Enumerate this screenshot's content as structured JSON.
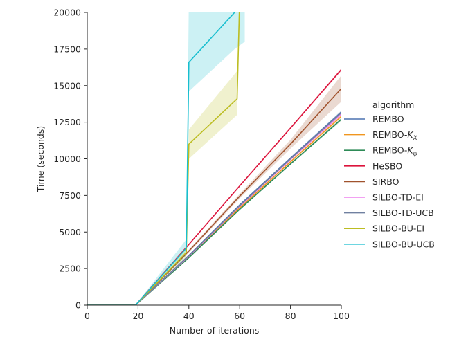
{
  "chart_data": {
    "type": "line",
    "title": "",
    "xlabel": "Number of iterations",
    "ylabel": "Time (seconds)",
    "xlim": [
      0,
      100
    ],
    "ylim": [
      0,
      20000
    ],
    "xticks": [
      0,
      20,
      40,
      60,
      80,
      100
    ],
    "yticks": [
      0,
      2500,
      5000,
      7500,
      10000,
      12500,
      15000,
      17500,
      20000
    ],
    "grid": false,
    "legend": {
      "title": "algorithm",
      "placement": "right"
    },
    "series": [
      {
        "name": "REMBO",
        "color": "#4c72b0",
        "points": [
          [
            0,
            0
          ],
          [
            19,
            0
          ],
          [
            40,
            3400
          ],
          [
            60,
            6850
          ],
          [
            80,
            10050
          ],
          [
            100,
            13200
          ]
        ],
        "band": [
          [
            0,
            0,
            0
          ],
          [
            19,
            0,
            0
          ],
          [
            40,
            3350,
            3450
          ],
          [
            60,
            6800,
            6900
          ],
          [
            80,
            9990,
            10110
          ],
          [
            100,
            13100,
            13300
          ]
        ]
      },
      {
        "name": "REMBO-K_X",
        "label_main": "REMBO-",
        "label_italic": "K",
        "label_sub": "X",
        "color": "#f0961f",
        "points": [
          [
            0,
            0
          ],
          [
            19,
            0
          ],
          [
            40,
            3300
          ],
          [
            60,
            6650
          ],
          [
            80,
            9800
          ],
          [
            100,
            12900
          ]
        ],
        "band": [
          [
            0,
            0,
            0
          ],
          [
            19,
            0,
            0
          ],
          [
            40,
            3250,
            3350
          ],
          [
            60,
            6600,
            6700
          ],
          [
            80,
            9740,
            9860
          ],
          [
            100,
            12800,
            13000
          ]
        ]
      },
      {
        "name": "REMBO-K_ψ",
        "label_main": "REMBO-",
        "label_italic": "K",
        "label_sub": "ψ",
        "color": "#2e8b57",
        "points": [
          [
            0,
            0
          ],
          [
            19,
            0
          ],
          [
            40,
            3250
          ],
          [
            60,
            6550
          ],
          [
            80,
            9650
          ],
          [
            100,
            12700
          ]
        ],
        "band": [
          [
            0,
            0,
            0
          ],
          [
            19,
            0,
            0
          ],
          [
            40,
            3200,
            3300
          ],
          [
            60,
            6500,
            6600
          ],
          [
            80,
            9590,
            9710
          ],
          [
            100,
            12600,
            12800
          ]
        ]
      },
      {
        "name": "HeSBO",
        "color": "#dc143c",
        "points": [
          [
            0,
            0
          ],
          [
            19,
            0
          ],
          [
            40,
            4150
          ],
          [
            60,
            8150
          ],
          [
            80,
            12100
          ],
          [
            100,
            16100
          ]
        ],
        "band": [
          [
            0,
            0,
            0
          ],
          [
            19,
            0,
            0
          ],
          [
            40,
            4100,
            4200
          ],
          [
            60,
            8100,
            8200
          ],
          [
            80,
            12050,
            12150
          ],
          [
            100,
            16000,
            16200
          ]
        ]
      },
      {
        "name": "SIRBO",
        "color": "#a0522d",
        "points": [
          [
            0,
            0
          ],
          [
            19,
            0
          ],
          [
            40,
            3700
          ],
          [
            60,
            7450
          ],
          [
            80,
            11000
          ],
          [
            100,
            14800
          ]
        ],
        "band": [
          [
            0,
            0,
            0
          ],
          [
            19,
            0,
            0
          ],
          [
            40,
            3600,
            3800
          ],
          [
            60,
            7300,
            7600
          ],
          [
            80,
            10700,
            11300
          ],
          [
            100,
            13900,
            15700
          ]
        ]
      },
      {
        "name": "SILBO-TD-EI",
        "color": "#ee82ee",
        "points": [
          [
            0,
            0
          ],
          [
            19,
            0
          ],
          [
            40,
            3350
          ],
          [
            60,
            6750
          ],
          [
            80,
            9950
          ],
          [
            100,
            13050
          ]
        ],
        "band": [
          [
            0,
            0,
            0
          ],
          [
            19,
            0,
            0
          ],
          [
            40,
            3300,
            3400
          ],
          [
            60,
            6700,
            6800
          ],
          [
            80,
            9890,
            10010
          ],
          [
            100,
            12950,
            13150
          ]
        ]
      },
      {
        "name": "SILBO-TD-UCB",
        "color": "#7080a0",
        "points": [
          [
            0,
            0
          ],
          [
            19,
            0
          ],
          [
            40,
            3380
          ],
          [
            60,
            6800
          ],
          [
            80,
            10000
          ],
          [
            100,
            13150
          ]
        ],
        "band": [
          [
            0,
            0,
            0
          ],
          [
            19,
            0,
            0
          ],
          [
            40,
            3330,
            3430
          ],
          [
            60,
            6750,
            6850
          ],
          [
            80,
            9940,
            10060
          ],
          [
            100,
            13050,
            13250
          ]
        ]
      },
      {
        "name": "SILBO-BU-EI",
        "color": "#bcbd22",
        "points": [
          [
            0,
            0
          ],
          [
            19,
            0
          ],
          [
            39,
            3600
          ],
          [
            40,
            11000
          ],
          [
            59,
            14100
          ],
          [
            60,
            21000
          ]
        ],
        "band": [
          [
            0,
            0,
            0
          ],
          [
            19,
            0,
            0
          ],
          [
            39,
            3300,
            3900
          ],
          [
            40,
            10000,
            12000
          ],
          [
            59,
            13000,
            16000
          ],
          [
            60,
            20000,
            22000
          ]
        ]
      },
      {
        "name": "SILBO-BU-UCB",
        "color": "#17becf",
        "points": [
          [
            0,
            0
          ],
          [
            19,
            0
          ],
          [
            39,
            3900
          ],
          [
            40,
            16600
          ],
          [
            58,
            20000
          ],
          [
            62,
            20600
          ]
        ],
        "band": [
          [
            0,
            0,
            0
          ],
          [
            19,
            0,
            0
          ],
          [
            39,
            3400,
            4500
          ],
          [
            40,
            14600,
            21000
          ],
          [
            58,
            17500,
            22000
          ],
          [
            62,
            18000,
            22000
          ]
        ]
      }
    ]
  }
}
